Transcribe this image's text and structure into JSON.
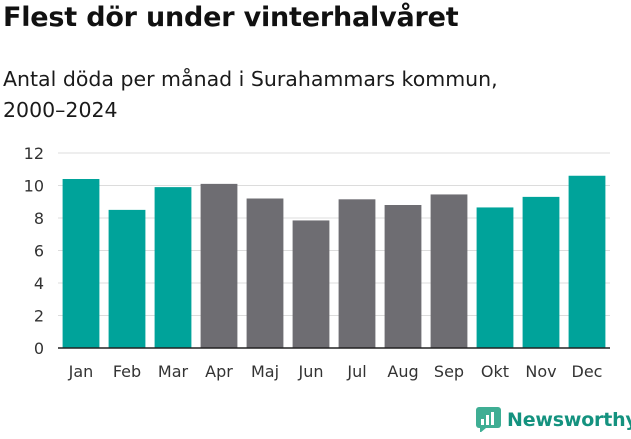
{
  "header": {
    "title": "Flest dör under vinterhalvåret",
    "subtitle": "Antal döda per månad i Surahammars kommun, 2000–2024"
  },
  "brand": {
    "name": "Newsworthy",
    "color": "#14927f"
  },
  "colors": {
    "winter": "#00a39a",
    "summer": "#6e6d72",
    "grid": "#dcdcdc",
    "axis": "#222222"
  },
  "chart_data": {
    "type": "bar",
    "title": "Flest dör under vinterhalvåret",
    "subtitle": "Antal döda per månad i Surahammars kommun, 2000–2024",
    "xlabel": "",
    "ylabel": "",
    "ylim": [
      0,
      12
    ],
    "yticks": [
      0,
      2,
      4,
      6,
      8,
      10,
      12
    ],
    "categories": [
      "Jan",
      "Feb",
      "Mar",
      "Apr",
      "Maj",
      "Jun",
      "Jul",
      "Aug",
      "Sep",
      "Okt",
      "Nov",
      "Dec"
    ],
    "values": [
      10.4,
      8.5,
      9.9,
      10.1,
      9.2,
      7.85,
      9.15,
      8.8,
      9.45,
      8.65,
      9.3,
      10.6
    ],
    "groups": [
      "winter",
      "winter",
      "winter",
      "summer",
      "summer",
      "summer",
      "summer",
      "summer",
      "summer",
      "winter",
      "winter",
      "winter"
    ],
    "grid": true
  }
}
